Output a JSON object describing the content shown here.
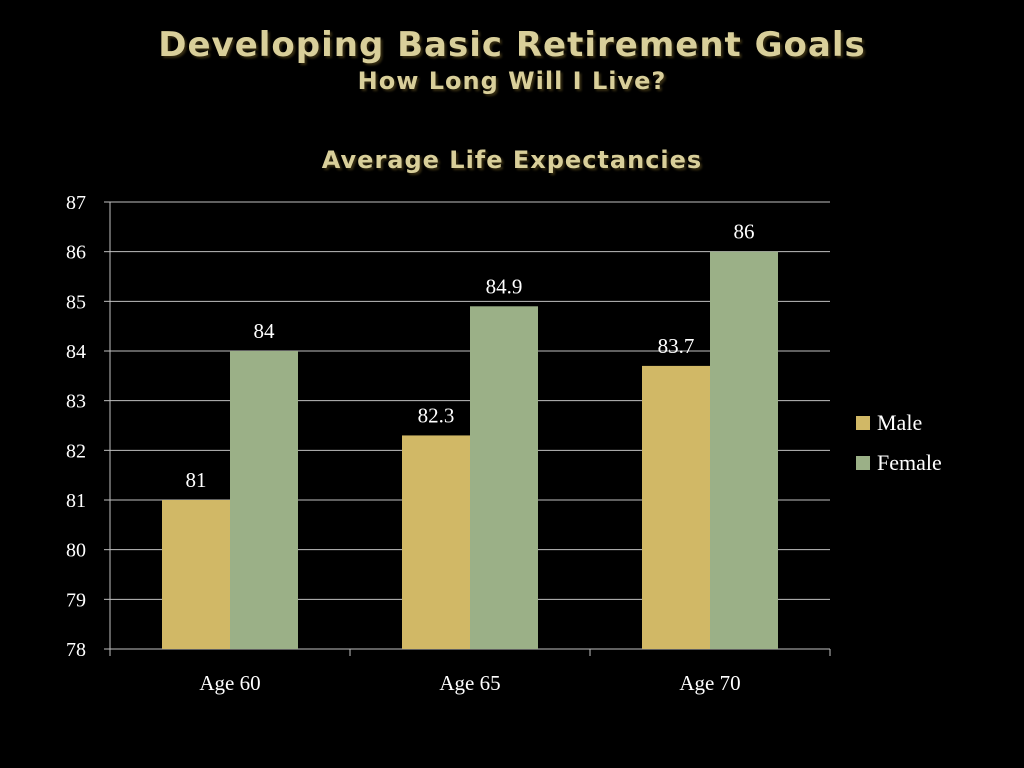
{
  "slide": {
    "title": "Developing Basic Retirement Goals",
    "subtitle": "How Long Will I Live?"
  },
  "colors": {
    "background": "#000000",
    "title": "#d9cf9a",
    "male": "#d1b866",
    "female": "#9bb087",
    "grid": "#bfbfbf",
    "text": "#ffffff"
  },
  "chart_data": {
    "type": "bar",
    "title": "Average Life Expectancies",
    "categories": [
      "Age 60",
      "Age 65",
      "Age 70"
    ],
    "series": [
      {
        "name": "Male",
        "values": [
          81,
          82.3,
          83.7
        ],
        "labels": [
          "81",
          "82.3",
          "83.7"
        ]
      },
      {
        "name": "Female",
        "values": [
          84,
          84.9,
          86
        ],
        "labels": [
          "84",
          "84.9",
          "86"
        ]
      }
    ],
    "xlabel": "",
    "ylabel": "",
    "ylim": [
      78,
      87
    ],
    "yticks": [
      78,
      79,
      80,
      81,
      82,
      83,
      84,
      85,
      86,
      87
    ],
    "grid": true,
    "legend": "right"
  }
}
